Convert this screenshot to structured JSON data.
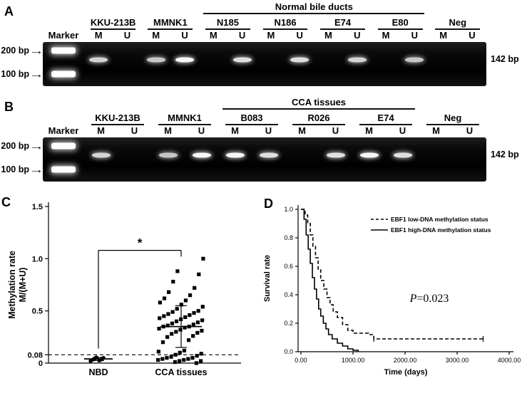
{
  "panel_letters": {
    "a": "A",
    "b": "B",
    "c": "C",
    "d": "D"
  },
  "arrow_icon": "→",
  "gels": {
    "a": {
      "header": "Normal bile ducts",
      "marker_label": "Marker",
      "lane_labels": [
        "M",
        "U"
      ],
      "size_left": [
        "200 bp",
        "100 bp"
      ],
      "size_right": "142 bp",
      "groups": [
        {
          "name": "KKU-213B",
          "in_header": false,
          "bands": {
            "M": 0.85,
            "U": 0
          }
        },
        {
          "name": "MMNK1",
          "in_header": false,
          "bands": {
            "M": 0.8,
            "U": 1.0
          }
        },
        {
          "name": "N185",
          "in_header": true,
          "bands": {
            "M": 0,
            "U": 0.9
          }
        },
        {
          "name": "N186",
          "in_header": true,
          "bands": {
            "M": 0,
            "U": 0.9
          }
        },
        {
          "name": "E74",
          "in_header": true,
          "bands": {
            "M": 0,
            "U": 0.85
          }
        },
        {
          "name": "E80",
          "in_header": true,
          "bands": {
            "M": 0,
            "U": 0.8
          }
        },
        {
          "name": "Neg",
          "in_header": false,
          "bands": {
            "M": 0,
            "U": 0
          }
        }
      ]
    },
    "b": {
      "header": "CCA tissues",
      "marker_label": "Marker",
      "lane_labels": [
        "M",
        "U"
      ],
      "size_left": [
        "200 bp",
        "100 bp"
      ],
      "size_right": "142 bp",
      "groups": [
        {
          "name": "KKU-213B",
          "in_header": false,
          "bands": {
            "M": 0.85,
            "U": 0
          }
        },
        {
          "name": "MMNK1",
          "in_header": false,
          "bands": {
            "M": 0.8,
            "U": 1.0
          }
        },
        {
          "name": "B083",
          "in_header": true,
          "bands": {
            "M": 1.0,
            "U": 0.9
          }
        },
        {
          "name": "R026",
          "in_header": true,
          "bands": {
            "M": 0,
            "U": 0.9
          }
        },
        {
          "name": "E74",
          "in_header": true,
          "bands": {
            "M": 1.0,
            "U": 0.9
          }
        },
        {
          "name": "Neg",
          "in_header": false,
          "bands": {
            "M": 0,
            "U": 0
          }
        }
      ]
    }
  },
  "chart_data": [
    {
      "type": "scatter",
      "panel": "C",
      "ylabel_lines": [
        "Methylation rate",
        "M/(M+U)"
      ],
      "ylim": [
        0,
        1.5
      ],
      "yticks": [
        0,
        0.08,
        0.5,
        1.0,
        1.5
      ],
      "ytick_labels": [
        "0",
        "0.08",
        "0.5",
        "1.0",
        "1.5"
      ],
      "reference_line_y": 0.08,
      "significance_label": "*",
      "groups": [
        {
          "label": "NBD",
          "marker": "circle",
          "mean": 0.04,
          "sd": 0.015,
          "values": [
            0.02,
            0.025,
            0.03,
            0.03,
            0.035,
            0.04,
            0.045,
            0.05,
            0.055
          ]
        },
        {
          "label": "CCA tissues",
          "marker": "square",
          "mean": 0.35,
          "sd": 0.2,
          "values": [
            0.0,
            0.01,
            0.02,
            0.02,
            0.03,
            0.03,
            0.04,
            0.04,
            0.05,
            0.05,
            0.06,
            0.07,
            0.08,
            0.09,
            0.1,
            0.11,
            0.12,
            0.2,
            0.22,
            0.25,
            0.26,
            0.28,
            0.29,
            0.3,
            0.31,
            0.32,
            0.33,
            0.34,
            0.35,
            0.35,
            0.36,
            0.37,
            0.38,
            0.39,
            0.4,
            0.41,
            0.42,
            0.43,
            0.44,
            0.45,
            0.46,
            0.47,
            0.48,
            0.49,
            0.5,
            0.52,
            0.54,
            0.56,
            0.58,
            0.6,
            0.62,
            0.65,
            0.68,
            0.72,
            0.78,
            0.85,
            0.88,
            1.0
          ]
        }
      ]
    },
    {
      "type": "line",
      "panel": "D",
      "xlabel": "Time (days)",
      "ylabel": "Survival rate",
      "xlim": [
        0,
        4000
      ],
      "ylim": [
        0,
        1
      ],
      "xticks": [
        0,
        1000,
        2000,
        3000,
        4000
      ],
      "xtick_labels": [
        "0.00",
        "1000.00",
        "2000.00",
        "3000.00",
        "4000.00"
      ],
      "yticks": [
        0,
        0.2,
        0.4,
        0.6,
        0.8,
        1.0
      ],
      "ytick_labels": [
        "0.0",
        "0.2",
        "0.4",
        "0.6",
        "0.8",
        "1.0"
      ],
      "p_label": {
        "symbol": "P",
        "value": "=0.023"
      },
      "legend": [
        {
          "label": "EBF1 low-DNA methylation status",
          "style": "dashed"
        },
        {
          "label": "EBF1 high-DNA methylation status",
          "style": "solid"
        }
      ],
      "series": [
        {
          "name": "EBF1 low-DNA methylation status",
          "style": "dashed",
          "points": [
            [
              0,
              1.0
            ],
            [
              80,
              0.96
            ],
            [
              130,
              0.9
            ],
            [
              180,
              0.82
            ],
            [
              230,
              0.74
            ],
            [
              280,
              0.66
            ],
            [
              330,
              0.58
            ],
            [
              380,
              0.5
            ],
            [
              440,
              0.44
            ],
            [
              500,
              0.38
            ],
            [
              560,
              0.33
            ],
            [
              620,
              0.28
            ],
            [
              700,
              0.24
            ],
            [
              800,
              0.19
            ],
            [
              900,
              0.15
            ],
            [
              1000,
              0.13
            ],
            [
              1300,
              0.12
            ],
            [
              1400,
              0.09
            ],
            [
              3500,
              0.09
            ]
          ],
          "censors": [
            [
              1400,
              0.09
            ],
            [
              3500,
              0.09
            ]
          ]
        },
        {
          "name": "EBF1 high-DNA methylation status",
          "style": "solid",
          "points": [
            [
              0,
              1.0
            ],
            [
              60,
              0.93
            ],
            [
              100,
              0.82
            ],
            [
              140,
              0.72
            ],
            [
              180,
              0.62
            ],
            [
              220,
              0.52
            ],
            [
              260,
              0.44
            ],
            [
              300,
              0.37
            ],
            [
              340,
              0.3
            ],
            [
              380,
              0.25
            ],
            [
              430,
              0.2
            ],
            [
              480,
              0.16
            ],
            [
              530,
              0.12
            ],
            [
              600,
              0.09
            ],
            [
              700,
              0.06
            ],
            [
              800,
              0.04
            ],
            [
              900,
              0.02
            ],
            [
              1000,
              0.01
            ],
            [
              1100,
              0.0
            ]
          ],
          "censors": []
        }
      ]
    }
  ]
}
